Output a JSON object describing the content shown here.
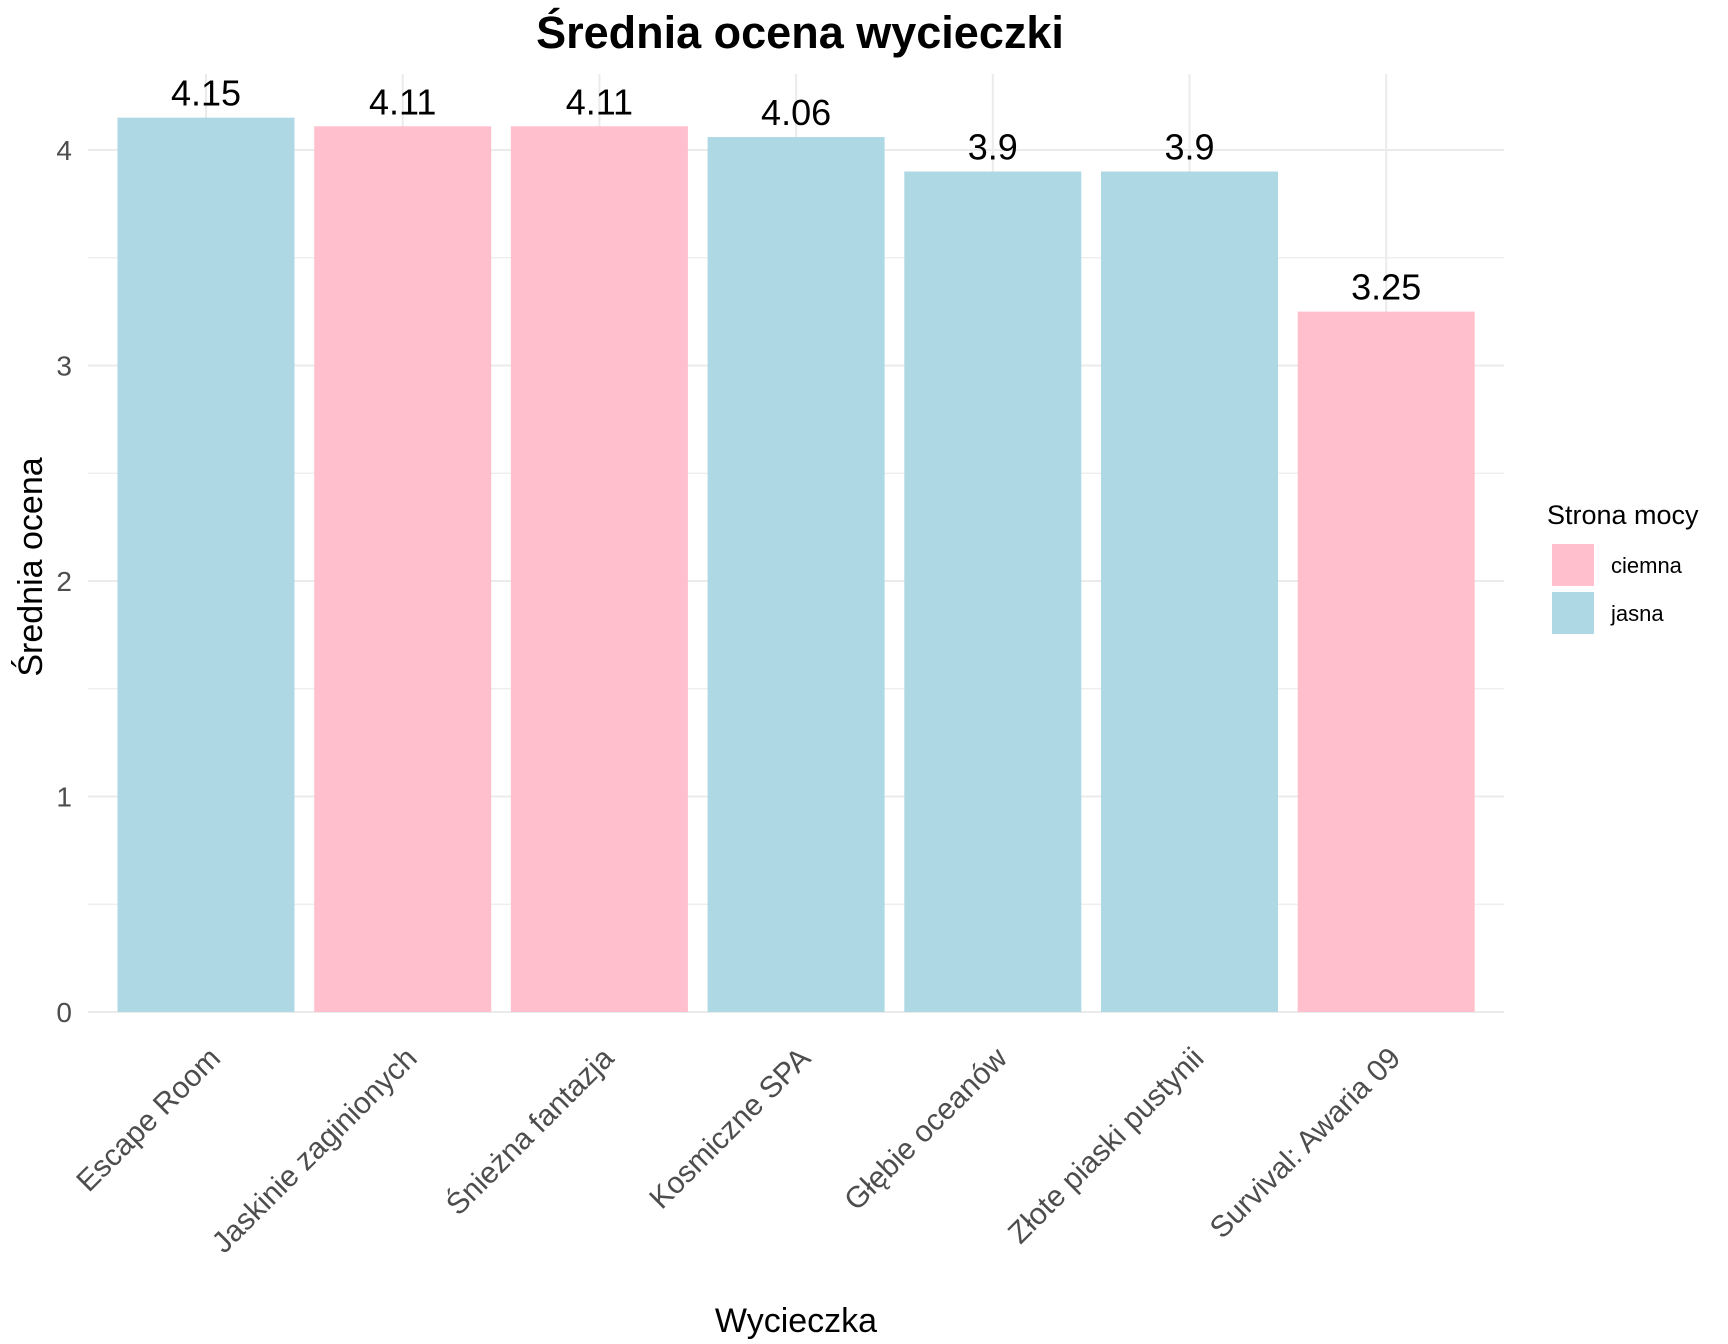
{
  "chart_data": {
    "type": "bar",
    "title": "Średnia ocena wycieczki",
    "xlabel": "Wycieczka",
    "ylabel": "Średnia ocena",
    "categories": [
      "Escape Room",
      "Jaskinie zaginionych",
      "Śnieżna fantazja",
      "Kosmiczne SPA",
      "Głębie oceanów",
      "Złote piaski pustynii",
      "Survival: Awaria 09"
    ],
    "values": [
      4.15,
      4.11,
      4.11,
      4.06,
      3.9,
      3.9,
      3.25
    ],
    "value_labels": [
      "4.15",
      "4.11",
      "4.11",
      "4.06",
      "3.9",
      "3.9",
      "3.25"
    ],
    "groups": [
      "jasna",
      "ciemna",
      "ciemna",
      "jasna",
      "jasna",
      "jasna",
      "ciemna"
    ],
    "ylim": [
      0,
      4.3
    ],
    "yticks": [
      0,
      1,
      2,
      3,
      4
    ],
    "ytick_labels": [
      "0",
      "1",
      "2",
      "3",
      "4"
    ],
    "grid": true,
    "legend": {
      "title": "Strona mocy",
      "placement": "right",
      "entries": [
        {
          "key": "ciemna",
          "label": "ciemna",
          "color": "#FFBFCD"
        },
        {
          "key": "jasna",
          "label": "jasna",
          "color": "#ADD8E4"
        }
      ]
    },
    "colors": {
      "ciemna": "#FFBFCD",
      "jasna": "#ADD8E4",
      "grid": "#EBEBEB",
      "tick_text": "#4D4D4D"
    }
  }
}
